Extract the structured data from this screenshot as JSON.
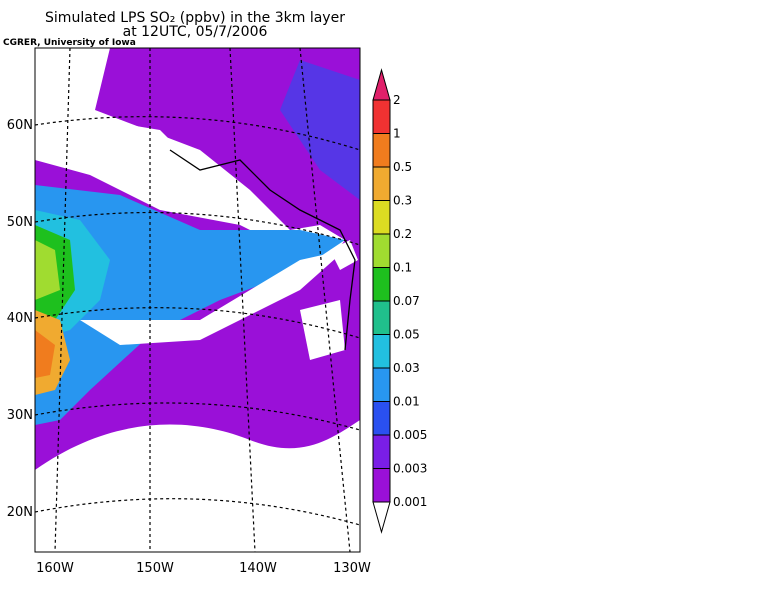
{
  "header": {
    "title": "Simulated LPS SO₂ (ppbv) in the 3km layer",
    "subtitle": "at 12UTC, 05/7/2006",
    "credit": "CGRER, University of Iowa"
  },
  "map": {
    "lat_labels": [
      "60N",
      "50N",
      "40N",
      "30N",
      "20N"
    ],
    "lon_labels": [
      "160W",
      "150W",
      "140W",
      "130W"
    ]
  },
  "colorbar": {
    "labels": [
      "2",
      "1",
      "0.5",
      "0.3",
      "0.2",
      "0.1",
      "0.07",
      "0.05",
      "0.03",
      "0.01",
      "0.005",
      "0.003",
      "0.001"
    ],
    "colors": [
      "#e0206a",
      "#f03232",
      "#f07c1e",
      "#f0aa30",
      "#dcdc22",
      "#a0dc30",
      "#1ec01e",
      "#20c08c",
      "#22c0e0",
      "#2896f0",
      "#2a50f0",
      "#7a1ee6",
      "#9a10d8",
      "#ffffff"
    ]
  }
}
